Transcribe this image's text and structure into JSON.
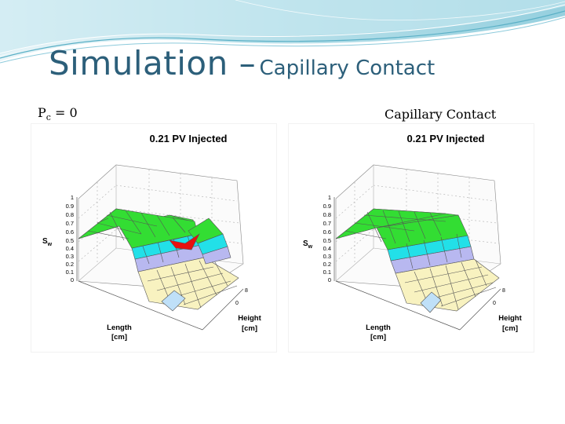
{
  "slide": {
    "title_main": "Simulation –",
    "title_sub": "Capillary Contact",
    "left_label_base": "P",
    "left_label_sub": "c",
    "left_label_tail": " = 0",
    "right_label": "Capillary Contact"
  },
  "plots": [
    {
      "title": "0.21 PV Injected",
      "z_label": "S",
      "z_label_sub": "w",
      "z_ticks": [
        "0",
        "0.1",
        "0.2",
        "0.3",
        "0.4",
        "0.5",
        "0.6",
        "0.7",
        "0.8",
        "0.9",
        "1"
      ],
      "length_label": "Length",
      "length_unit": "[cm]",
      "height_label": "Height",
      "height_unit": "[cm]",
      "height_ticks": [
        "0",
        "8"
      ],
      "colors": {
        "green": "#33dd33",
        "cyan": "#22e0e8",
        "lavender": "#b8b8f0",
        "cream": "#f8f2c0",
        "light_blue": "#bfe0f8",
        "red": "#e81010"
      }
    },
    {
      "title": "0.21 PV Injected",
      "z_label": "S",
      "z_label_sub": "w",
      "z_ticks": [
        "0",
        "0.1",
        "0.2",
        "0.3",
        "0.4",
        "0.5",
        "0.6",
        "0.7",
        "0.8",
        "0.9",
        "1"
      ],
      "length_label": "Length",
      "length_unit": "[cm]",
      "height_label": "Height",
      "height_unit": "[cm]",
      "height_ticks": [
        "0",
        "8"
      ],
      "colors": {
        "green": "#33dd33",
        "cyan": "#22e0e8",
        "lavender": "#b8b8f0",
        "cream": "#f8f2c0",
        "light_blue": "#bfe0f8"
      }
    }
  ]
}
